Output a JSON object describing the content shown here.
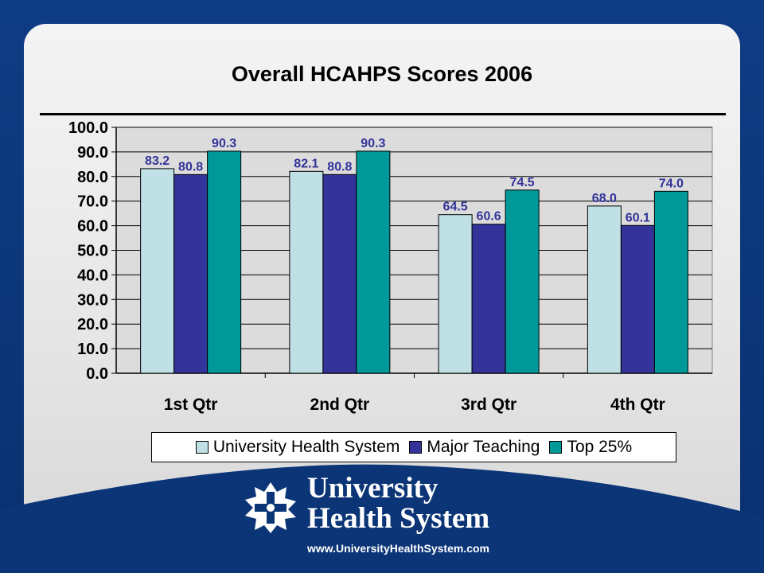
{
  "chart_data": {
    "type": "bar",
    "title": "Overall HCAHPS Scores 2006",
    "categories": [
      "1st Qtr",
      "2nd Qtr",
      "3rd Qtr",
      "4th Qtr"
    ],
    "series": [
      {
        "name": "University Health System",
        "values": [
          83.2,
          82.1,
          64.5,
          68.0
        ],
        "color": "#bfe1e6"
      },
      {
        "name": "Major Teaching",
        "values": [
          80.8,
          80.8,
          60.6,
          60.1
        ],
        "color": "#333399"
      },
      {
        "name": "Top 25%",
        "values": [
          90.3,
          90.3,
          74.5,
          74.0
        ],
        "color": "#009999"
      }
    ],
    "ylim": [
      0,
      100
    ],
    "yticks": [
      "0.0",
      "10.0",
      "20.0",
      "30.0",
      "40.0",
      "50.0",
      "60.0",
      "70.0",
      "80.0",
      "90.0",
      "100.0"
    ],
    "data_label_color": "#333399",
    "plot_background": "#dcdcdc",
    "grid": true,
    "legend_position": "bottom"
  },
  "brand": {
    "line1": "University",
    "line2": "Health System",
    "url": "www.UniversityHealthSystem.com"
  },
  "logo_icon": "star-cross-logo-icon"
}
